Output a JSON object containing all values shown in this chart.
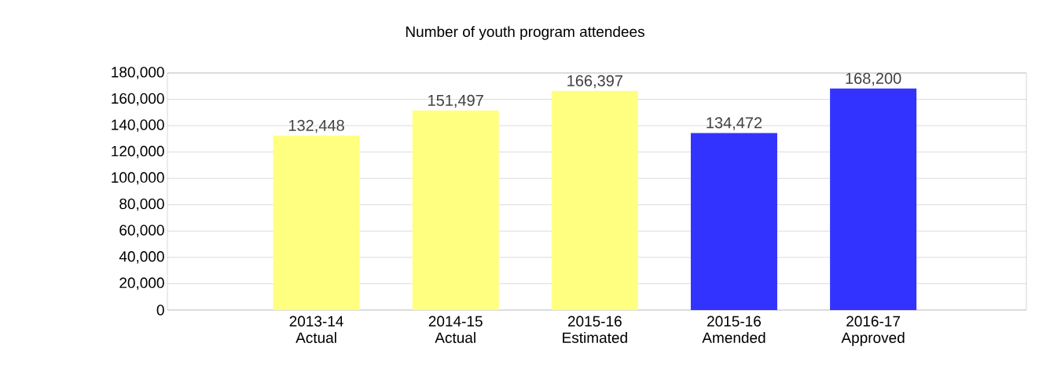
{
  "chart_data": {
    "type": "bar",
    "title": "Number of youth program attendees",
    "categories": [
      "2013-14 Actual",
      "2014-15 Actual",
      "2015-16 Estimated",
      "2015-16 Amended",
      "2016-17 Approved"
    ],
    "values": [
      132448,
      151497,
      166397,
      134472,
      168200
    ],
    "value_labels": [
      "132,448",
      "151,497",
      "166,397",
      "134,472",
      "168,200"
    ],
    "colors": [
      "#ffff80",
      "#ffff80",
      "#ffff80",
      "#3333ff",
      "#3333ff"
    ],
    "ylim": [
      0,
      180000
    ],
    "yticks": [
      {
        "value": 0,
        "label": "0"
      },
      {
        "value": 20000,
        "label": "20,000"
      },
      {
        "value": 40000,
        "label": "40,000"
      },
      {
        "value": 60000,
        "label": "60,000"
      },
      {
        "value": 80000,
        "label": "80,000"
      },
      {
        "value": 100000,
        "label": "100,000"
      },
      {
        "value": 120000,
        "label": "120,000"
      },
      {
        "value": 140000,
        "label": "140,000"
      },
      {
        "value": 160000,
        "label": "160,000"
      },
      {
        "value": 180000,
        "label": "180,000"
      }
    ],
    "grid": "y"
  }
}
